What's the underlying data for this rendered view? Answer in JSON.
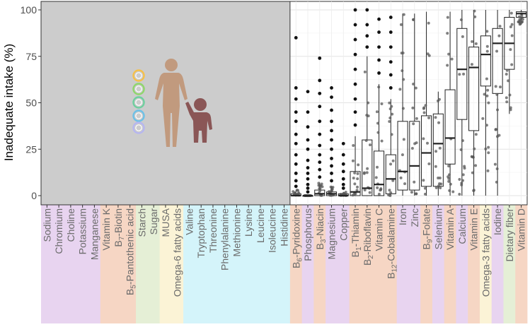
{
  "chart_data": {
    "type": "boxplot",
    "ylabel": "Inadequate intake (%)",
    "ylim": [
      0,
      100
    ],
    "yticks": [
      0,
      25,
      50,
      75,
      100
    ],
    "grid": true,
    "no_data_region_categories": 21,
    "group_colors": {
      "purple": "#e8d4f0",
      "orange": "#f6d6c4",
      "green": "#e5efd6",
      "yellow": "#fbf3d6",
      "cyan": "#d4f4fa"
    },
    "icons": [
      "nutrient-icon",
      "woman-icon",
      "child-icon"
    ],
    "categories": [
      {
        "label": "Sodium",
        "group": "purple"
      },
      {
        "label": "Chromium",
        "group": "purple"
      },
      {
        "label": "Choline",
        "group": "purple"
      },
      {
        "label": "Potassium",
        "group": "purple"
      },
      {
        "label": "Manganese",
        "group": "purple"
      },
      {
        "label": "Vitamin K",
        "group": "orange"
      },
      {
        "label": "B7-Biotin",
        "group": "orange",
        "pre": "B",
        "sub": "7",
        "post": "-Biotin"
      },
      {
        "label": "B5-Pantothenic acid",
        "group": "orange",
        "pre": "B",
        "sub": "5",
        "post": "-Pantothenic acid"
      },
      {
        "label": "Starch",
        "group": "green"
      },
      {
        "label": "Sugar",
        "group": "green"
      },
      {
        "label": "MUSA",
        "group": "yellow"
      },
      {
        "label": "Omega-6 fatty acids",
        "group": "yellow"
      },
      {
        "label": "Valine",
        "group": "cyan"
      },
      {
        "label": "Tryptophan",
        "group": "cyan"
      },
      {
        "label": "Threonine",
        "group": "cyan"
      },
      {
        "label": "Phenylalanine",
        "group": "cyan"
      },
      {
        "label": "Methionine",
        "group": "cyan"
      },
      {
        "label": "Lysine",
        "group": "cyan"
      },
      {
        "label": "Leucine",
        "group": "cyan"
      },
      {
        "label": "Isoleucine",
        "group": "cyan"
      },
      {
        "label": "Histidine",
        "group": "cyan"
      },
      {
        "label": "B6-Pyridoxine",
        "group": "orange",
        "pre": "B",
        "sub": "6",
        "post": "-Pyridoxine"
      },
      {
        "label": "Phosphorus",
        "group": "purple"
      },
      {
        "label": "B3-Niacin",
        "group": "orange",
        "pre": "B",
        "sub": "3",
        "post": "-Niacin"
      },
      {
        "label": "Magnesium",
        "group": "purple"
      },
      {
        "label": "Copper",
        "group": "purple"
      },
      {
        "label": "B1-Thiamin",
        "group": "orange",
        "pre": "B",
        "sub": "1",
        "post": "-Thiamin"
      },
      {
        "label": "B2-Riboflavin",
        "group": "orange",
        "pre": "B",
        "sub": "2",
        "post": "-Riboflavin"
      },
      {
        "label": "Vitamin C",
        "group": "orange"
      },
      {
        "label": "B12-Cobalamine",
        "group": "orange",
        "pre": "B",
        "sub": "12",
        "post": "-Cobalamine"
      },
      {
        "label": "Iron",
        "group": "purple"
      },
      {
        "label": "Zinc",
        "group": "purple"
      },
      {
        "label": "B9-Folate",
        "group": "orange",
        "pre": "B",
        "sub": "9",
        "post": "-Folate"
      },
      {
        "label": "Selenium",
        "group": "purple"
      },
      {
        "label": "Vitamin A",
        "group": "orange"
      },
      {
        "label": "Calcium",
        "group": "purple"
      },
      {
        "label": "Vitamin E",
        "group": "orange"
      },
      {
        "label": "Omega-3 fatty acids",
        "group": "yellow"
      },
      {
        "label": "Iodine",
        "group": "purple"
      },
      {
        "label": "Dietary fiber",
        "group": "green"
      },
      {
        "label": "Vitamin D",
        "group": "orange"
      }
    ],
    "boxes": [
      {
        "category": "B6-Pyridoxine",
        "q1": 0,
        "median": 0,
        "q3": 1,
        "whisker_low": 0,
        "whisker_high": 3,
        "outliers": [
          5,
          8,
          12,
          17,
          22,
          28,
          33,
          40,
          45,
          52,
          58,
          85
        ]
      },
      {
        "category": "Phosphorus",
        "q1": 0,
        "median": 0,
        "q3": 0,
        "whisker_low": 0,
        "whisker_high": 0,
        "outliers": [
          2,
          4,
          6,
          9,
          12,
          15,
          19,
          25,
          30,
          37,
          45,
          56
        ]
      },
      {
        "category": "B3-Niacin",
        "q1": 0,
        "median": 1,
        "q3": 3,
        "whisker_low": 0,
        "whisker_high": 7,
        "outliers": [
          10,
          14,
          18,
          22,
          27,
          33,
          40,
          48,
          55,
          62,
          74
        ]
      },
      {
        "category": "Magnesium",
        "q1": 0,
        "median": 1,
        "q3": 2,
        "whisker_low": 0,
        "whisker_high": 5,
        "outliers": [
          8,
          12,
          16,
          20,
          25,
          30,
          35,
          40,
          46,
          53,
          58
        ]
      },
      {
        "category": "Copper",
        "q1": 0,
        "median": 0,
        "q3": 1,
        "whisker_low": 0,
        "whisker_high": 2,
        "outliers": [
          4,
          6,
          9,
          13,
          17,
          22,
          28
        ]
      },
      {
        "category": "B1-Thiamin",
        "q1": 0,
        "median": 2,
        "q3": 13,
        "whisker_low": 0,
        "whisker_high": 32,
        "outliers": [
          38,
          45,
          52,
          60,
          68,
          76,
          84,
          92,
          100
        ]
      },
      {
        "category": "B2-Riboflavin",
        "q1": 0,
        "median": 4,
        "q3": 30,
        "whisker_low": 0,
        "whisker_high": 75,
        "outliers": [
          80,
          86,
          92,
          100
        ]
      },
      {
        "category": "Vitamin C",
        "q1": 0,
        "median": 6,
        "q3": 24,
        "whisker_low": 0,
        "whisker_high": 60,
        "outliers": [
          66,
          73,
          80,
          88,
          95
        ]
      },
      {
        "category": "B12-Cobalamine",
        "q1": 1,
        "median": 9,
        "q3": 22,
        "whisker_low": 0,
        "whisker_high": 52,
        "outliers": [
          58,
          65,
          72,
          80,
          88,
          96
        ]
      },
      {
        "category": "Iron",
        "q1": 3,
        "median": 13,
        "q3": 40,
        "whisker_low": 0,
        "whisker_high": 98,
        "outliers": []
      },
      {
        "category": "Zinc",
        "q1": 3,
        "median": 16,
        "q3": 40,
        "whisker_low": 0,
        "whisker_high": 98,
        "outliers": []
      },
      {
        "category": "B9-Folate",
        "q1": 5,
        "median": 23,
        "q3": 43,
        "whisker_low": 0,
        "whisker_high": 99,
        "outliers": []
      },
      {
        "category": "Selenium",
        "q1": 5,
        "median": 28,
        "q3": 44,
        "whisker_low": 0,
        "whisker_high": 56,
        "outliers": []
      },
      {
        "category": "Vitamin A",
        "q1": 17,
        "median": 31,
        "q3": 57,
        "whisker_low": 0,
        "whisker_high": 99,
        "outliers": []
      },
      {
        "category": "Calcium",
        "q1": 41,
        "median": 68,
        "q3": 90,
        "whisker_low": 0,
        "whisker_high": 100,
        "outliers": []
      },
      {
        "category": "Vitamin E",
        "q1": 35,
        "median": 69,
        "q3": 80,
        "whisker_low": 0,
        "whisker_high": 100,
        "outliers": []
      },
      {
        "category": "Omega-3 fatty acids",
        "q1": 59,
        "median": 76,
        "q3": 86,
        "whisker_low": 0,
        "whisker_high": 100,
        "outliers": []
      },
      {
        "category": "Iodine",
        "q1": 55,
        "median": 82,
        "q3": 90,
        "whisker_low": 0,
        "whisker_high": 100,
        "outliers": []
      },
      {
        "category": "Dietary fiber",
        "q1": 68,
        "median": 82,
        "q3": 96,
        "whisker_low": 44,
        "whisker_high": 100,
        "outliers": []
      },
      {
        "category": "Vitamin D",
        "q1": 96,
        "median": 98,
        "q3": 99,
        "whisker_low": 92,
        "whisker_high": 100,
        "outliers": []
      }
    ]
  }
}
